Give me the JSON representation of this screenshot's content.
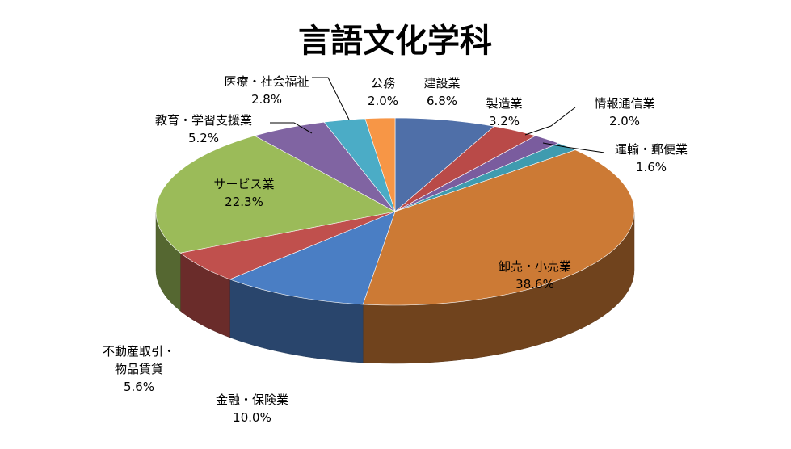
{
  "chart_data": {
    "type": "pie",
    "title": "言語文化学科",
    "start_angle_deg": 90,
    "direction": "clockwise",
    "slices": [
      {
        "label": "建設業",
        "value": 6.8,
        "display": "6.8%",
        "color": "#4F6FA8"
      },
      {
        "label": "製造業",
        "value": 3.2,
        "display": "3.2%",
        "color": "#B94A48"
      },
      {
        "label": "情報通信業",
        "value": 2.0,
        "display": "2.0%",
        "color": "#7A5C9E"
      },
      {
        "label": "運輸・郵便業",
        "value": 1.6,
        "display": "1.6%",
        "color": "#3F9BAF"
      },
      {
        "label": "卸売・小売業",
        "value": 38.6,
        "display": "38.6%",
        "color": "#CC7A35"
      },
      {
        "label": "金融・保険業",
        "value": 10.0,
        "display": "10.0%",
        "color": "#4A7EC4"
      },
      {
        "label": "不動産取引・物品賃貸",
        "value": 5.6,
        "display": "5.6%",
        "color": "#C0504D"
      },
      {
        "label": "サービス業",
        "value": 22.3,
        "display": "22.3%",
        "color": "#9BBB59"
      },
      {
        "label": "教育・学習支援業",
        "value": 5.2,
        "display": "5.2%",
        "color": "#8064A2"
      },
      {
        "label": "医療・社会福祉",
        "value": 2.8,
        "display": "2.8%",
        "color": "#4BACC6"
      },
      {
        "label": "公務",
        "value": 2.0,
        "display": "2.0%",
        "color": "#F79646"
      }
    ]
  }
}
